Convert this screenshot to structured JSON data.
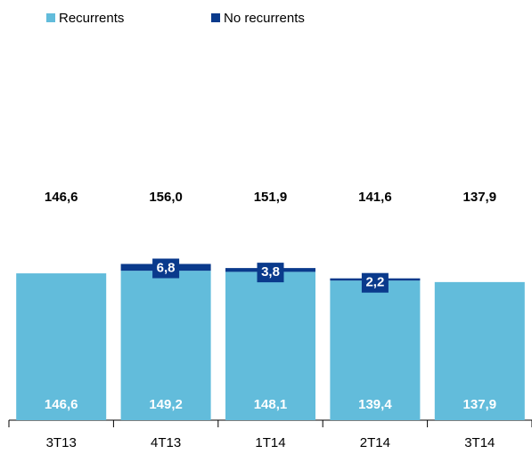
{
  "chart_data": {
    "type": "stacked_bar",
    "categories": [
      "3T13",
      "4T13",
      "1T14",
      "2T14",
      "3T14"
    ],
    "series": [
      {
        "name": "Recurrents",
        "color": "#62bcdb",
        "values": [
          146.6,
          149.2,
          148.1,
          139.4,
          137.9
        ],
        "value_labels": [
          "146,6",
          "149,2",
          "148,1",
          "139,4",
          "137,9"
        ]
      },
      {
        "name": "No recurrents",
        "color": "#0a3a8c",
        "values": [
          null,
          6.8,
          3.8,
          2.2,
          null
        ],
        "value_labels": [
          null,
          "6,8",
          "3,8",
          "2,2",
          null
        ]
      }
    ],
    "totals": {
      "values": [
        146.6,
        156.0,
        151.9,
        141.6,
        137.9
      ],
      "value_labels": [
        "146,6",
        "156,0",
        "151,9",
        "141,6",
        "137,9"
      ]
    }
  }
}
